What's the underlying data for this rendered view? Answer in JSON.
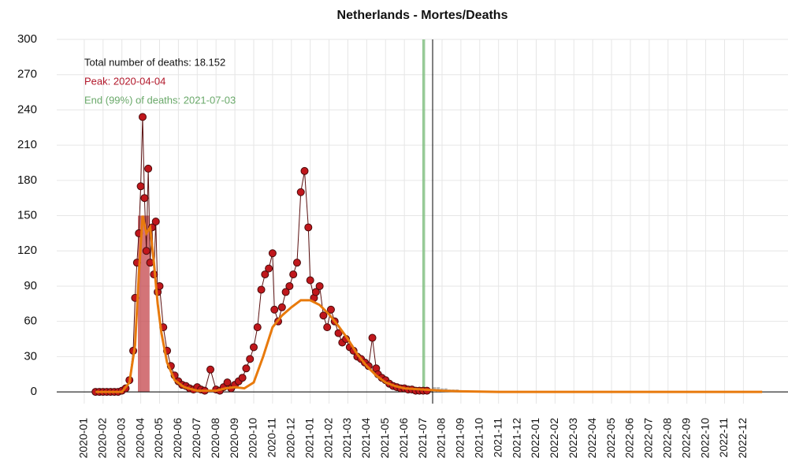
{
  "chart_data": {
    "type": "scatter",
    "title": "Netherlands - Mortes/Deaths",
    "annotations": [
      {
        "text": "Total number of deaths: 18.152",
        "color": "#111111"
      },
      {
        "text": "Peak: 2020-04-04",
        "color": "#b2182b"
      },
      {
        "text": "End (99%) of deaths: 2021-07-03",
        "color": "#6aa96a"
      }
    ],
    "xlim": [
      -1.46,
      37.37
    ],
    "xticks": [
      {
        "value": 0,
        "label": "2020-01"
      },
      {
        "value": 1,
        "label": "2020-02"
      },
      {
        "value": 2,
        "label": "2020-03"
      },
      {
        "value": 3,
        "label": "2020-04"
      },
      {
        "value": 4,
        "label": "2020-05"
      },
      {
        "value": 5,
        "label": "2020-06"
      },
      {
        "value": 6,
        "label": "2020-07"
      },
      {
        "value": 7,
        "label": "2020-08"
      },
      {
        "value": 8,
        "label": "2020-09"
      },
      {
        "value": 9,
        "label": "2020-10"
      },
      {
        "value": 10,
        "label": "2020-11"
      },
      {
        "value": 11,
        "label": "2020-12"
      },
      {
        "value": 12,
        "label": "2021-01"
      },
      {
        "value": 13,
        "label": "2021-02"
      },
      {
        "value": 14,
        "label": "2021-03"
      },
      {
        "value": 15,
        "label": "2021-04"
      },
      {
        "value": 16,
        "label": "2021-05"
      },
      {
        "value": 17,
        "label": "2021-06"
      },
      {
        "value": 18,
        "label": "2021-07"
      },
      {
        "value": 19,
        "label": "2021-08"
      },
      {
        "value": 20,
        "label": "2021-09"
      },
      {
        "value": 21,
        "label": "2021-10"
      },
      {
        "value": 22,
        "label": "2021-11"
      },
      {
        "value": 23,
        "label": "2021-12"
      },
      {
        "value": 24,
        "label": "2022-01"
      },
      {
        "value": 25,
        "label": "2022-02"
      },
      {
        "value": 26,
        "label": "2022-03"
      },
      {
        "value": 27,
        "label": "2022-04"
      },
      {
        "value": 28,
        "label": "2022-05"
      },
      {
        "value": 29,
        "label": "2022-06"
      },
      {
        "value": 30,
        "label": "2022-07"
      },
      {
        "value": 31,
        "label": "2022-08"
      },
      {
        "value": 32,
        "label": "2022-09"
      },
      {
        "value": 33,
        "label": "2022-10"
      },
      {
        "value": 34,
        "label": "2022-11"
      },
      {
        "value": 35,
        "label": "2022-12"
      }
    ],
    "ylim": [
      -10,
      300
    ],
    "yticks": [
      0,
      30,
      60,
      90,
      120,
      150,
      180,
      210,
      240,
      270,
      300
    ],
    "grid": true,
    "peak_band": {
      "x": [
        2.85,
        3.47
      ],
      "color": "#c0393f"
    },
    "end_band": {
      "x": [
        17.95,
        18.1
      ],
      "color": "#7fbf7f"
    },
    "today": 18.5,
    "series": [
      {
        "style": "points",
        "color": "#c0171c",
        "x": [
          0.6,
          0.8,
          1.0,
          1.2,
          1.4,
          1.6,
          1.8,
          2.0,
          2.2,
          2.4,
          2.6,
          2.7,
          2.8,
          2.9,
          3.0,
          3.1,
          3.2,
          3.3,
          3.4,
          3.5,
          3.6,
          3.7,
          3.8,
          3.9,
          4.0,
          4.2,
          4.4,
          4.6,
          4.8,
          5.0,
          5.2,
          5.4,
          5.6,
          5.8,
          6.0,
          6.2,
          6.4,
          6.7,
          7.0,
          7.2,
          7.4,
          7.6,
          7.8,
          8.0,
          8.2,
          8.4,
          8.6,
          8.8,
          9.0,
          9.2,
          9.4,
          9.6,
          9.8,
          10.0,
          10.1,
          10.3,
          10.5,
          10.7,
          10.9,
          11.1,
          11.3,
          11.5,
          11.7,
          11.9,
          12.0,
          12.2,
          12.3,
          12.5,
          12.7,
          12.9,
          13.1,
          13.3,
          13.5,
          13.7,
          13.9,
          14.1,
          14.3,
          14.5,
          14.7,
          14.9,
          15.1,
          15.3,
          15.5,
          15.6,
          15.8,
          16.0,
          16.2,
          16.4,
          16.6,
          16.8,
          17.0,
          17.2,
          17.4,
          17.6,
          17.8,
          18.0,
          18.2
        ],
        "values": [
          0,
          0,
          0,
          0,
          0,
          0,
          0,
          1,
          3,
          10,
          35,
          80,
          110,
          135,
          175,
          234,
          165,
          120,
          190,
          110,
          140,
          100,
          145,
          85,
          90,
          55,
          35,
          22,
          14,
          9,
          6,
          5,
          3,
          2,
          4,
          2,
          1,
          19,
          2,
          1,
          4,
          8,
          3,
          6,
          9,
          12,
          20,
          28,
          38,
          55,
          87,
          100,
          105,
          118,
          70,
          60,
          72,
          85,
          90,
          100,
          110,
          170,
          188,
          140,
          95,
          80,
          85,
          90,
          65,
          55,
          70,
          60,
          50,
          42,
          45,
          38,
          35,
          30,
          28,
          25,
          22,
          46,
          20,
          15,
          12,
          10,
          7,
          5,
          4,
          3,
          3,
          2,
          2,
          1,
          1,
          1,
          1
        ]
      },
      {
        "style": "line",
        "color": "#e87a0c",
        "x": [
          0.6,
          2.0,
          2.4,
          2.7,
          2.9,
          3.1,
          3.3,
          3.5,
          3.7,
          3.9,
          4.1,
          4.4,
          4.8,
          5.3,
          6.0,
          7.0,
          7.5,
          8.0,
          8.5,
          9.0,
          9.5,
          10.0,
          10.5,
          11.0,
          11.5,
          12.0,
          12.5,
          13.0,
          13.5,
          14.0,
          14.5,
          15.0,
          15.5,
          16.0,
          16.5,
          17.0,
          18.0,
          19.0,
          20.0,
          22.0,
          36.0
        ],
        "values": [
          0,
          0,
          8,
          40,
          100,
          150,
          135,
          140,
          110,
          75,
          50,
          25,
          10,
          4,
          1,
          1,
          3,
          4,
          3,
          8,
          30,
          55,
          65,
          72,
          78,
          78,
          74,
          66,
          56,
          45,
          32,
          22,
          14,
          8,
          5,
          3,
          2,
          1,
          0.5,
          0,
          0
        ]
      },
      {
        "style": "bars",
        "color": "#b5b5b5",
        "x": [
          18.6,
          18.8,
          19.0,
          19.2,
          19.4,
          19.6,
          19.8,
          20.0,
          20.4,
          20.8
        ],
        "values": [
          4,
          4,
          3,
          3,
          2,
          2,
          2,
          1,
          1,
          1
        ]
      }
    ]
  }
}
